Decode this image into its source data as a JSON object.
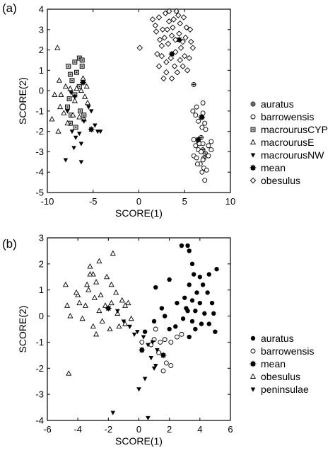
{
  "chart_data": [
    {
      "panel": "(a)",
      "type": "scatter",
      "xlabel": "SCORE(1)",
      "ylabel": "SCORE(2)",
      "xlim": [
        -10,
        10
      ],
      "ylim": [
        -5,
        4
      ],
      "xticks": [
        -10,
        -5,
        0,
        5,
        10
      ],
      "yticks": [
        -5,
        -4,
        -3,
        -2,
        -1,
        0,
        1,
        2,
        3,
        4
      ],
      "legend": "right",
      "grid": false,
      "series": [
        {
          "name": "auratus",
          "marker": "circle-plus",
          "points": [
            [
              6.0,
              0.3
            ],
            [
              6.5,
              -2.5
            ],
            [
              6.8,
              -2.3
            ],
            [
              7.0,
              -2.9
            ],
            [
              7.1,
              -3.3
            ],
            [
              7.3,
              -3.1
            ]
          ]
        },
        {
          "name": "barrowensis",
          "marker": "circle-open",
          "points": [
            [
              5.9,
              -1.0
            ],
            [
              6.2,
              -1.2
            ],
            [
              6.5,
              -1.5
            ],
            [
              6.8,
              -1.3
            ],
            [
              7.0,
              -1.1
            ],
            [
              6.3,
              -0.8
            ],
            [
              7.2,
              -1.6
            ],
            [
              7.3,
              -1.9
            ],
            [
              6.9,
              -1.8
            ],
            [
              7.0,
              -0.6
            ],
            [
              6.2,
              -2.7
            ],
            [
              6.5,
              -2.9
            ],
            [
              6.8,
              -3.0
            ],
            [
              7.0,
              -3.4
            ],
            [
              6.7,
              -3.6
            ],
            [
              7.1,
              -3.8
            ],
            [
              7.6,
              -2.7
            ],
            [
              7.9,
              -2.9
            ],
            [
              6.0,
              -3.2
            ],
            [
              6.3,
              -3.3
            ],
            [
              7.4,
              -3.9
            ],
            [
              7.2,
              -4.4
            ],
            [
              6.4,
              -3.6
            ],
            [
              7.9,
              -2.5
            ],
            [
              7.6,
              -3.2
            ],
            [
              6.0,
              -2.4
            ],
            [
              6.6,
              -2.6
            ],
            [
              7.0,
              -2.6
            ],
            [
              6.9,
              -4.0
            ]
          ]
        },
        {
          "name": "macrourusCYP",
          "marker": "square-dot",
          "points": [
            [
              -7.7,
              1.2
            ],
            [
              -7.5,
              0.8
            ],
            [
              -7.0,
              1.4
            ],
            [
              -6.5,
              1.6
            ],
            [
              -6.2,
              1.2
            ],
            [
              -6.8,
              0.9
            ],
            [
              -7.3,
              0.5
            ],
            [
              -7.6,
              -0.4
            ],
            [
              -7.8,
              -0.8
            ],
            [
              -7.4,
              -1.2
            ],
            [
              -7.5,
              -1.6
            ],
            [
              -6.9,
              -1.8
            ],
            [
              -6.4,
              -1.0
            ],
            [
              -6.0,
              -1.2
            ],
            [
              -6.5,
              0.2
            ],
            [
              -7.0,
              -0.2
            ],
            [
              -6.2,
              1.5
            ]
          ]
        },
        {
          "name": "macrourusE",
          "marker": "triangle-up-open",
          "points": [
            [
              -8.9,
              2.1
            ],
            [
              -8.7,
              0.5
            ],
            [
              -8.5,
              -0.2
            ],
            [
              -8.6,
              -0.8
            ],
            [
              -8.2,
              -1.1
            ],
            [
              -8.8,
              -2.0
            ],
            [
              -8.0,
              0.2
            ],
            [
              -7.8,
              -1.6
            ],
            [
              -7.5,
              0.1
            ],
            [
              -7.0,
              -0.5
            ],
            [
              -6.8,
              0.1
            ],
            [
              -6.3,
              0.0
            ],
            [
              -5.9,
              -0.3
            ],
            [
              -5.6,
              -0.6
            ],
            [
              -6.0,
              -1.4
            ],
            [
              -6.5,
              -1.3
            ],
            [
              -9.2,
              -0.2
            ],
            [
              -9.5,
              -1.4
            ],
            [
              -7.2,
              -1.2
            ],
            [
              -6.1,
              0.6
            ],
            [
              -5.7,
              0.2
            ]
          ]
        },
        {
          "name": "macrourusNW",
          "marker": "triangle-down-filled",
          "points": [
            [
              -7.4,
              -0.1
            ],
            [
              -7.0,
              -0.3
            ],
            [
              -7.8,
              -1.0
            ],
            [
              -7.3,
              -2.0
            ],
            [
              -6.5,
              -2.1
            ],
            [
              -6.0,
              -1.5
            ],
            [
              -5.5,
              -0.8
            ],
            [
              -5.2,
              -1.0
            ],
            [
              -4.8,
              -1.7
            ],
            [
              -4.5,
              -2.0
            ],
            [
              -4.2,
              -2.0
            ],
            [
              -6.3,
              -2.6
            ],
            [
              -7.1,
              -2.8
            ],
            [
              -8.0,
              -3.4
            ],
            [
              -6.3,
              -3.5
            ],
            [
              -6.9,
              -2.3
            ]
          ]
        },
        {
          "name": "mean",
          "marker": "star-circle",
          "points": [
            [
              -6.1,
              0.4
            ],
            [
              -5.2,
              -1.9
            ],
            [
              3.6,
              1.8
            ],
            [
              4.4,
              2.5
            ],
            [
              6.5,
              -2.4
            ],
            [
              6.9,
              -1.3
            ]
          ]
        },
        {
          "name": "obesulus",
          "marker": "diamond-open",
          "points": [
            [
              0.1,
              2.1
            ],
            [
              1.5,
              3.5
            ],
            [
              1.8,
              3.2
            ],
            [
              2.2,
              3.6
            ],
            [
              2.6,
              3.0
            ],
            [
              2.9,
              3.8
            ],
            [
              3.3,
              3.4
            ],
            [
              3.7,
              3.1
            ],
            [
              4.1,
              3.9
            ],
            [
              4.5,
              3.3
            ],
            [
              4.9,
              3.6
            ],
            [
              2.3,
              2.5
            ],
            [
              2.8,
              2.6
            ],
            [
              3.2,
              2.3
            ],
            [
              3.6,
              2.7
            ],
            [
              4.0,
              2.5
            ],
            [
              4.4,
              2.8
            ],
            [
              4.8,
              2.4
            ],
            [
              5.2,
              3.1
            ],
            [
              5.6,
              3.0
            ],
            [
              2.0,
              1.8
            ],
            [
              2.5,
              1.7
            ],
            [
              3.0,
              1.4
            ],
            [
              3.5,
              1.6
            ],
            [
              4.0,
              1.9
            ],
            [
              4.5,
              1.5
            ],
            [
              5.0,
              1.7
            ],
            [
              5.5,
              1.6
            ],
            [
              2.2,
              1.2
            ],
            [
              3.0,
              0.9
            ],
            [
              3.6,
              0.6
            ],
            [
              4.2,
              0.9
            ],
            [
              4.8,
              1.2
            ],
            [
              5.3,
              1.0
            ],
            [
              2.7,
              0.6
            ],
            [
              3.9,
              1.2
            ],
            [
              5.9,
              2.1
            ],
            [
              3.3,
              3.9
            ],
            [
              4.6,
              2.1
            ],
            [
              1.9,
              2.9
            ],
            [
              2.5,
              2.2
            ],
            [
              5.1,
              2.6
            ],
            [
              3.8,
              3.5
            ],
            [
              3.1,
              3.0
            ],
            [
              4.3,
              3.7
            ],
            [
              5.7,
              2.4
            ]
          ]
        }
      ]
    },
    {
      "panel": "(b)",
      "type": "scatter",
      "xlabel": "SCORE(1)",
      "ylabel": "SCORE(2)",
      "xlim": [
        -6,
        6
      ],
      "ylim": [
        -4,
        3
      ],
      "xticks": [
        -6,
        -4,
        -2,
        0,
        2,
        4,
        6
      ],
      "yticks": [
        -4,
        -3,
        -2,
        -1,
        0,
        1,
        2,
        3
      ],
      "legend": "bottom-right",
      "grid": false,
      "series": [
        {
          "name": "auratus",
          "marker": "circle-filled",
          "points": [
            [
              2.8,
              2.7
            ],
            [
              3.2,
              2.7
            ],
            [
              3.3,
              2.5
            ],
            [
              3.5,
              2.0
            ],
            [
              2.0,
              1.4
            ],
            [
              1.1,
              1.1
            ],
            [
              3.6,
              1.6
            ],
            [
              4.0,
              1.5
            ],
            [
              4.6,
              1.6
            ],
            [
              5.1,
              1.8
            ],
            [
              3.3,
              1.2
            ],
            [
              3.8,
              0.9
            ],
            [
              4.2,
              1.2
            ],
            [
              3.0,
              0.7
            ],
            [
              3.5,
              0.6
            ],
            [
              4.0,
              0.5
            ],
            [
              4.5,
              0.9
            ],
            [
              2.5,
              0.5
            ],
            [
              3.2,
              0.2
            ],
            [
              3.7,
              0.2
            ],
            [
              4.3,
              0.1
            ],
            [
              4.8,
              0.5
            ],
            [
              2.9,
              -0.1
            ],
            [
              3.5,
              -0.2
            ],
            [
              4.1,
              -0.3
            ],
            [
              4.6,
              -0.3
            ],
            [
              5.0,
              -0.6
            ],
            [
              2.4,
              -0.4
            ],
            [
              1.5,
              0.3
            ],
            [
              1.0,
              -0.2
            ],
            [
              0.4,
              -0.6
            ],
            [
              3.3,
              -0.8
            ],
            [
              3.7,
              -0.5
            ],
            [
              2.0,
              -0.5
            ],
            [
              4.9,
              0.1
            ],
            [
              1.7,
              0.0
            ],
            [
              3.1,
              0.3
            ]
          ]
        },
        {
          "name": "barrowensis",
          "marker": "circle-open",
          "points": [
            [
              1.0,
              -0.9
            ],
            [
              1.4,
              -1.0
            ],
            [
              1.7,
              -0.9
            ],
            [
              2.1,
              -1.0
            ],
            [
              2.5,
              -0.8
            ],
            [
              2.8,
              -0.7
            ],
            [
              1.8,
              -1.8
            ],
            [
              2.1,
              -1.9
            ],
            [
              1.6,
              -2.1
            ],
            [
              1.3,
              -1.4
            ],
            [
              0.8,
              -1.1
            ],
            [
              0.2,
              -1.0
            ],
            [
              1.1,
              -0.5
            ]
          ]
        },
        {
          "name": "mean",
          "marker": "star-circle",
          "points": [
            [
              -2.0,
              0.3
            ],
            [
              0.2,
              -1.3
            ],
            [
              1.6,
              -1.5
            ]
          ]
        },
        {
          "name": "obesulus",
          "marker": "triangle-up-open",
          "points": [
            [
              -4.8,
              1.2
            ],
            [
              -4.7,
              0.4
            ],
            [
              -4.5,
              0.0
            ],
            [
              -4.0,
              0.8
            ],
            [
              -3.9,
              0.5
            ],
            [
              -3.7,
              -0.1
            ],
            [
              -3.5,
              0.4
            ],
            [
              -3.3,
              1.0
            ],
            [
              -3.2,
              1.9
            ],
            [
              -3.0,
              1.6
            ],
            [
              -2.9,
              0.7
            ],
            [
              -2.8,
              1.3
            ],
            [
              -2.6,
              0.2
            ],
            [
              -2.6,
              2.1
            ],
            [
              -2.4,
              -0.2
            ],
            [
              -2.2,
              0.4
            ],
            [
              -2.1,
              1.5
            ],
            [
              -1.9,
              -0.5
            ],
            [
              -1.8,
              0.5
            ],
            [
              -1.7,
              2.4
            ],
            [
              -1.5,
              0.9
            ],
            [
              -1.4,
              0.1
            ],
            [
              -1.3,
              -0.4
            ],
            [
              -1.1,
              0.6
            ],
            [
              -0.9,
              -0.3
            ],
            [
              -0.7,
              0.5
            ],
            [
              -0.5,
              -0.1
            ],
            [
              -3.4,
              1.2
            ],
            [
              -4.6,
              -2.2
            ],
            [
              -3.0,
              -0.4
            ],
            [
              -2.8,
              -0.7
            ],
            [
              -2.5,
              0.8
            ],
            [
              -3.2,
              1.6
            ],
            [
              -1.8,
              1.2
            ],
            [
              -4.1,
              0.9
            ],
            [
              -0.9,
              0.4
            ]
          ]
        },
        {
          "name": "peninsulae",
          "marker": "triangle-down-filled",
          "points": [
            [
              -2.0,
              0.3
            ],
            [
              -1.4,
              0.2
            ],
            [
              -1.0,
              -0.2
            ],
            [
              -0.6,
              -0.4
            ],
            [
              -0.1,
              -0.6
            ],
            [
              0.3,
              -0.8
            ],
            [
              0.6,
              -1.1
            ],
            [
              0.8,
              -1.6
            ],
            [
              1.1,
              -1.9
            ],
            [
              1.2,
              -1.3
            ],
            [
              0.4,
              -2.4
            ],
            [
              0.0,
              -2.8
            ],
            [
              -1.7,
              -3.7
            ],
            [
              0.6,
              -3.9
            ],
            [
              -0.6,
              -0.4
            ],
            [
              0.9,
              -1.0
            ],
            [
              -0.3,
              -0.7
            ],
            [
              1.0,
              -2.0
            ]
          ]
        }
      ]
    }
  ]
}
